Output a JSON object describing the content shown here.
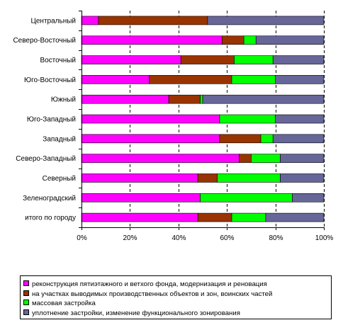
{
  "chart_data": {
    "type": "bar",
    "orientation": "horizontal",
    "stacked": "percent",
    "categories": [
      "Центральный",
      "Северо-Восточный",
      "Восточный",
      "Юго-Восточный",
      "Южный",
      "Юго-Западный",
      "Западный",
      "Северо-Западный",
      "Северный",
      "Зеленоградский",
      "итого по городу"
    ],
    "series": [
      {
        "name": "реконструкция пятиэтажного и ветхого фонда, модернизация и реновация",
        "color": "#ff00ff",
        "values": [
          7,
          58,
          41,
          28,
          36,
          57,
          57,
          65,
          48,
          49,
          48
        ]
      },
      {
        "name": "на участках выводимых производственных объектов и зон, воинских частей",
        "color": "#993300",
        "values": [
          45,
          9,
          22,
          34,
          13,
          0,
          17,
          5,
          8,
          0,
          14
        ]
      },
      {
        "name": "массовая застройка",
        "color": "#00ff00",
        "values": [
          0,
          5,
          16,
          18,
          1,
          23,
          5,
          12,
          26,
          38,
          14
        ]
      },
      {
        "name": "уплотнение застройки, изменение функционального зонирования",
        "color": "#666699",
        "values": [
          48,
          28,
          21,
          20,
          50,
          20,
          21,
          18,
          18,
          13,
          24
        ]
      }
    ],
    "x_ticks": [
      "0%",
      "20%",
      "40%",
      "60%",
      "80%",
      "100%"
    ],
    "xlim": [
      0,
      100
    ],
    "grid": "vertical dashed",
    "legend_position": "bottom"
  }
}
